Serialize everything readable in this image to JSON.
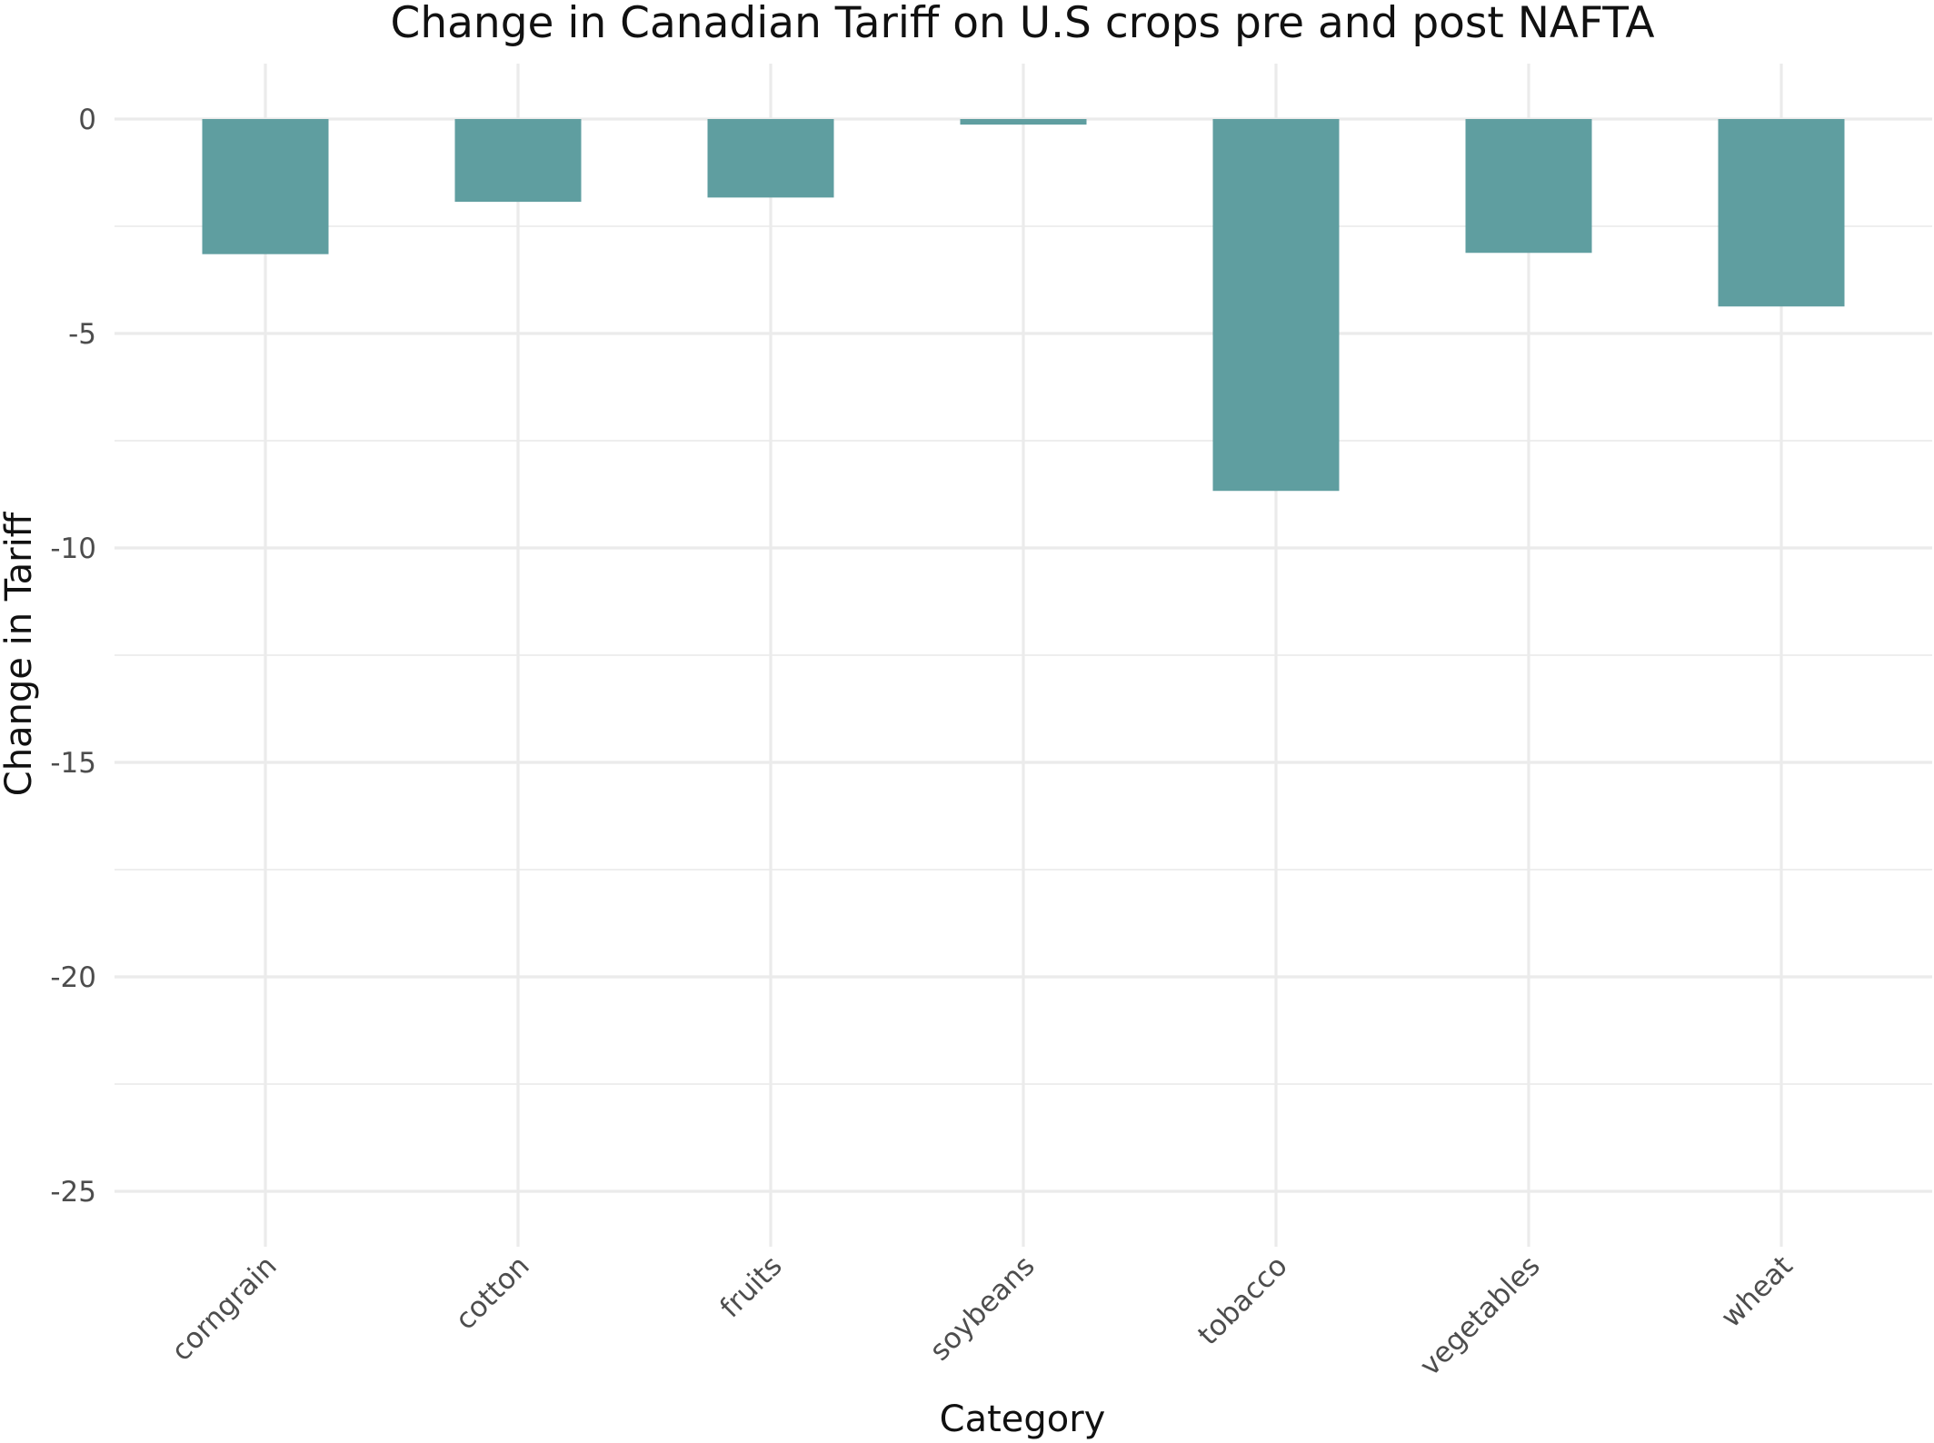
{
  "chart_data": {
    "type": "bar",
    "title": "Change in Canadian Tariff on U.S crops pre and post NAFTA",
    "xlabel": "Category",
    "ylabel": "Change in Tariff",
    "categories": [
      "corngrain",
      "cotton",
      "fruits",
      "soybeans",
      "tobacco",
      "vegetables",
      "wheat"
    ],
    "values": [
      -3.15,
      -1.93,
      -1.83,
      -0.13,
      -8.67,
      -3.12,
      -4.37
    ],
    "ylim": [
      -26.2,
      1.3
    ],
    "yticks": [
      0,
      -5,
      -10,
      -15,
      -20,
      -25
    ],
    "ytick_labels": [
      "0",
      "-5",
      "-10",
      "-15",
      "-20",
      "-25"
    ],
    "grid": true,
    "legend": "none",
    "bar_color": "#5f9ea0"
  }
}
